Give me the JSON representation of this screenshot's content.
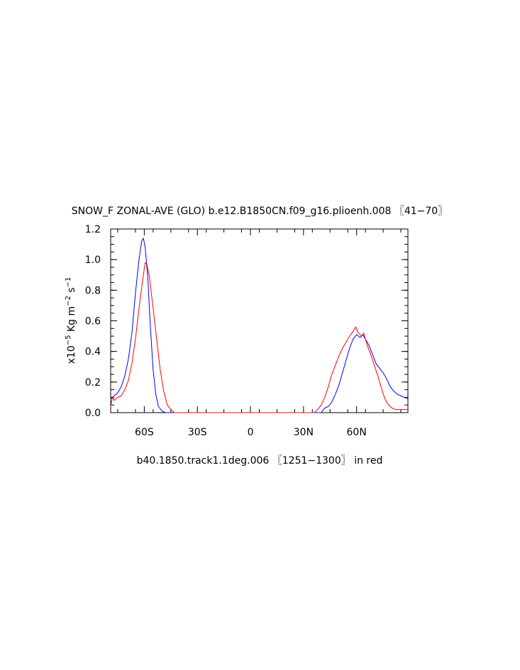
{
  "chart_data": {
    "type": "line",
    "title": "SNOW_F ZONAL-AVE (GLO) b.e12.B1850CN.f09_g16.plioenh.008 〖41−70〗",
    "ylabel_main": "x10",
    "ylabel_exp": "−5",
    "ylabel_units": " Kg m",
    "ylabel_exp2": "−2",
    "ylabel_units2": " s",
    "ylabel_exp3": "−1",
    "xlabel": "b40.1850.track1.1deg.006 〖1251−1300〗 in red",
    "xlim": [
      -79,
      89
    ],
    "ylim": [
      0,
      1.2
    ],
    "xticks": [
      {
        "value": -60,
        "label": "60S"
      },
      {
        "value": -30,
        "label": "30S"
      },
      {
        "value": 0,
        "label": "0"
      },
      {
        "value": 30,
        "label": "30N"
      },
      {
        "value": 60,
        "label": "60N"
      }
    ],
    "yticks": [
      {
        "value": 0.0,
        "label": "0.0"
      },
      {
        "value": 0.2,
        "label": "0.2"
      },
      {
        "value": 0.4,
        "label": "0.4"
      },
      {
        "value": 0.6,
        "label": "0.6"
      },
      {
        "value": 0.8,
        "label": "0.8"
      },
      {
        "value": 1.0,
        "label": "1.0"
      },
      {
        "value": 1.2,
        "label": "1.2"
      }
    ],
    "series": [
      {
        "color": "#0000ff",
        "points": [
          [
            -79,
            0.09
          ],
          [
            -77,
            0.11
          ],
          [
            -75,
            0.13
          ],
          [
            -73,
            0.17
          ],
          [
            -71,
            0.24
          ],
          [
            -69,
            0.35
          ],
          [
            -67,
            0.52
          ],
          [
            -65,
            0.78
          ],
          [
            -63,
            1.0
          ],
          [
            -61.5,
            1.12
          ],
          [
            -60.5,
            1.14
          ],
          [
            -59.5,
            1.08
          ],
          [
            -58,
            0.88
          ],
          [
            -56.5,
            0.55
          ],
          [
            -55,
            0.28
          ],
          [
            -53.5,
            0.12
          ],
          [
            -52,
            0.04
          ],
          [
            -50,
            0.01
          ],
          [
            -48,
            0.0
          ],
          [
            40,
            0.0
          ],
          [
            42,
            0.03
          ],
          [
            44,
            0.04
          ],
          [
            46,
            0.07
          ],
          [
            48,
            0.12
          ],
          [
            50,
            0.18
          ],
          [
            52,
            0.26
          ],
          [
            54,
            0.34
          ],
          [
            56,
            0.42
          ],
          [
            58,
            0.48
          ],
          [
            60,
            0.51
          ],
          [
            62,
            0.49
          ],
          [
            63.5,
            0.51
          ],
          [
            65,
            0.48
          ],
          [
            67,
            0.44
          ],
          [
            69,
            0.38
          ],
          [
            71,
            0.32
          ],
          [
            73,
            0.29
          ],
          [
            75,
            0.26
          ],
          [
            77,
            0.22
          ],
          [
            79,
            0.17
          ],
          [
            81,
            0.14
          ],
          [
            83,
            0.12
          ],
          [
            85,
            0.11
          ],
          [
            87,
            0.1
          ],
          [
            89,
            0.09
          ]
        ]
      },
      {
        "color": "#ff0000",
        "points": [
          [
            -79,
            0.04
          ],
          [
            -78,
            0.1
          ],
          [
            -77,
            0.08
          ],
          [
            -75,
            0.1
          ],
          [
            -73,
            0.11
          ],
          [
            -71,
            0.15
          ],
          [
            -69,
            0.21
          ],
          [
            -67,
            0.32
          ],
          [
            -65,
            0.48
          ],
          [
            -63,
            0.68
          ],
          [
            -61,
            0.86
          ],
          [
            -59.5,
            0.98
          ],
          [
            -58.5,
            0.97
          ],
          [
            -57,
            0.88
          ],
          [
            -55,
            0.68
          ],
          [
            -53,
            0.48
          ],
          [
            -51,
            0.28
          ],
          [
            -49,
            0.14
          ],
          [
            -47,
            0.05
          ],
          [
            -45,
            0.02
          ],
          [
            -43,
            0.0
          ],
          [
            36,
            0.0
          ],
          [
            38,
            0.02
          ],
          [
            40,
            0.05
          ],
          [
            42,
            0.1
          ],
          [
            44,
            0.17
          ],
          [
            46,
            0.25
          ],
          [
            48,
            0.31
          ],
          [
            50,
            0.37
          ],
          [
            52,
            0.42
          ],
          [
            54,
            0.46
          ],
          [
            56,
            0.5
          ],
          [
            58,
            0.53
          ],
          [
            59.5,
            0.56
          ],
          [
            61,
            0.52
          ],
          [
            63,
            0.5
          ],
          [
            64,
            0.52
          ],
          [
            66,
            0.44
          ],
          [
            68,
            0.38
          ],
          [
            70,
            0.31
          ],
          [
            72,
            0.24
          ],
          [
            74,
            0.16
          ],
          [
            76,
            0.09
          ],
          [
            78,
            0.05
          ],
          [
            80,
            0.03
          ],
          [
            82,
            0.02
          ],
          [
            89,
            0.02
          ]
        ]
      }
    ]
  }
}
